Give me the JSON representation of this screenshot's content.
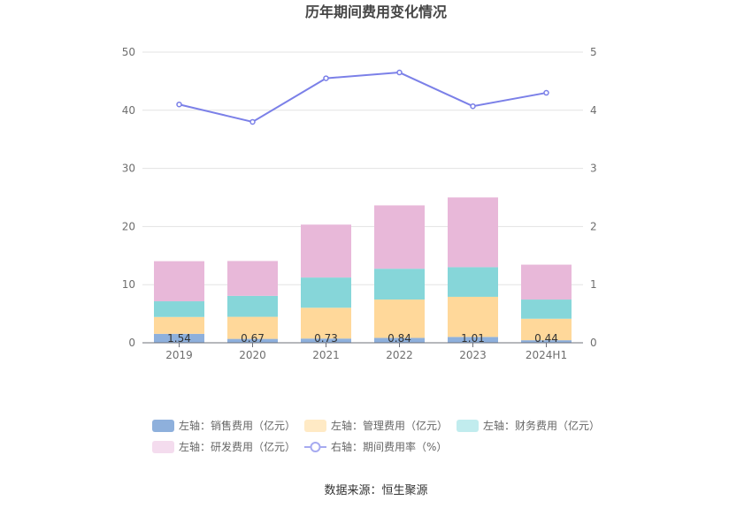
{
  "chart_data": {
    "type": "bar",
    "title": "历年期间费用变化情况",
    "categories": [
      "2019",
      "2020",
      "2021",
      "2022",
      "2023",
      "2024H1"
    ],
    "y_left": {
      "lim": [
        0,
        50
      ],
      "ticks": [
        "0",
        "10",
        "20",
        "30",
        "40",
        "50"
      ]
    },
    "y_right": {
      "lim": [
        0,
        5
      ],
      "ticks": [
        "0",
        "1",
        "2",
        "3",
        "4",
        "5"
      ]
    },
    "series": [
      {
        "name": "左轴：销售费用（亿元）",
        "type": "bar",
        "axis": "left",
        "color": "#8eb0dc",
        "values": [
          1.54,
          0.67,
          0.73,
          0.84,
          1.01,
          0.44
        ],
        "labels": [
          "1.54",
          "0.67",
          "0.73",
          "0.84",
          "1.01",
          "0.44"
        ]
      },
      {
        "name": "左轴：管理费用（亿元）",
        "type": "bar",
        "axis": "left",
        "color": "#ffd89a",
        "values": [
          2.9,
          3.8,
          5.3,
          6.6,
          6.9,
          3.7
        ]
      },
      {
        "name": "左轴：财务费用（亿元）",
        "type": "bar",
        "axis": "left",
        "color": "#86d6d9",
        "values": [
          2.7,
          3.6,
          5.2,
          5.3,
          5.1,
          3.3
        ]
      },
      {
        "name": "左轴：研发费用（亿元）",
        "type": "bar",
        "axis": "left",
        "color": "#e8b8d9",
        "values": [
          6.9,
          6.0,
          9.1,
          10.9,
          12.0,
          6.0
        ]
      },
      {
        "name": "右轴：期间费用率（%）",
        "type": "line",
        "axis": "right",
        "color": "#7b80e8",
        "values": [
          4.1,
          3.8,
          4.55,
          4.65,
          4.07,
          4.3
        ]
      }
    ],
    "legend_position": "bottom",
    "grid": true
  },
  "legend_colors": {
    "sales": "#8eb0dc",
    "admin": "#ffeac5",
    "finance": "#c1ecee",
    "rnd": "#f4dcee",
    "rate": "#a6aaf0"
  },
  "source_text": "数据来源：恒生聚源"
}
